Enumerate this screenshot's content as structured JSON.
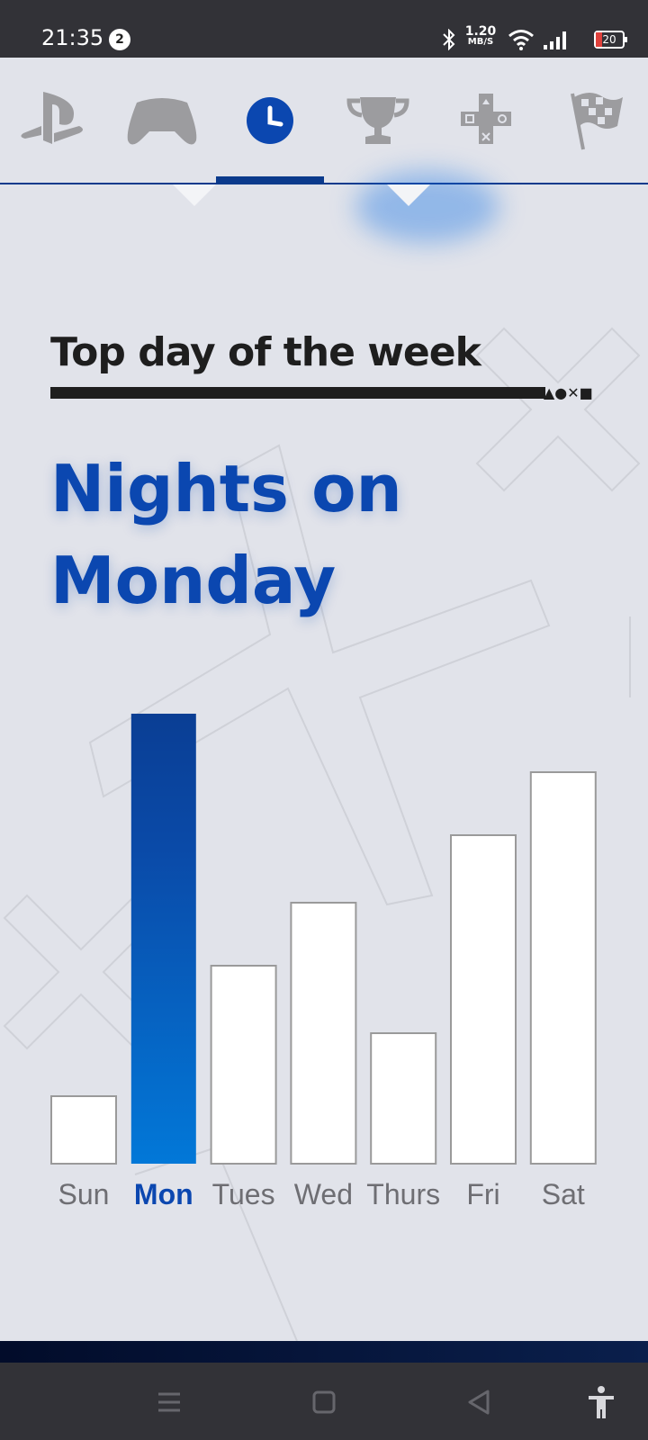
{
  "status_bar": {
    "time": "21:35",
    "notification_count": "2",
    "speed_value": "1.20",
    "speed_unit": "MB/S",
    "battery": "20",
    "icons": [
      "bluetooth-icon",
      "wifi-icon",
      "signal-icon",
      "battery-icon"
    ]
  },
  "tabs": [
    {
      "name": "tab-playstation",
      "icon": "playstation-logo-icon",
      "active": false
    },
    {
      "name": "tab-games",
      "icon": "gamepad-icon",
      "active": false
    },
    {
      "name": "tab-time",
      "icon": "clock-icon",
      "active": true
    },
    {
      "name": "tab-trophies",
      "icon": "trophy-icon",
      "active": false
    },
    {
      "name": "tab-plus",
      "icon": "plus-controller-icon",
      "active": false
    },
    {
      "name": "tab-racing",
      "icon": "checkered-flag-icon",
      "active": false
    }
  ],
  "section": {
    "title": "Top day of the week",
    "title_symbols": "▲●✕■",
    "headline_line1": "Nights on",
    "headline_line2": "Monday"
  },
  "chart_data": {
    "type": "bar",
    "categories": [
      "Sun",
      "Mon",
      "Tues",
      "Wed",
      "Thurs",
      "Fri",
      "Sat"
    ],
    "values": [
      15,
      100,
      44,
      58,
      29,
      73,
      87
    ],
    "highlight": "Mon",
    "title": "",
    "xlabel": "",
    "ylabel": "",
    "ylim": [
      0,
      100
    ],
    "grid": false,
    "colors": {
      "highlight_top": "#0a3e94",
      "highlight_bottom": "#0275d8",
      "bar": "#ffffff",
      "bar_border": "#9a9a9a"
    }
  },
  "nav_bar": {
    "buttons": [
      "menu-icon",
      "home-icon",
      "back-icon",
      "accessibility-icon"
    ]
  },
  "colors": {
    "accent": "#0b47b0",
    "background": "#e1e3ea",
    "status_bar": "#323237"
  }
}
